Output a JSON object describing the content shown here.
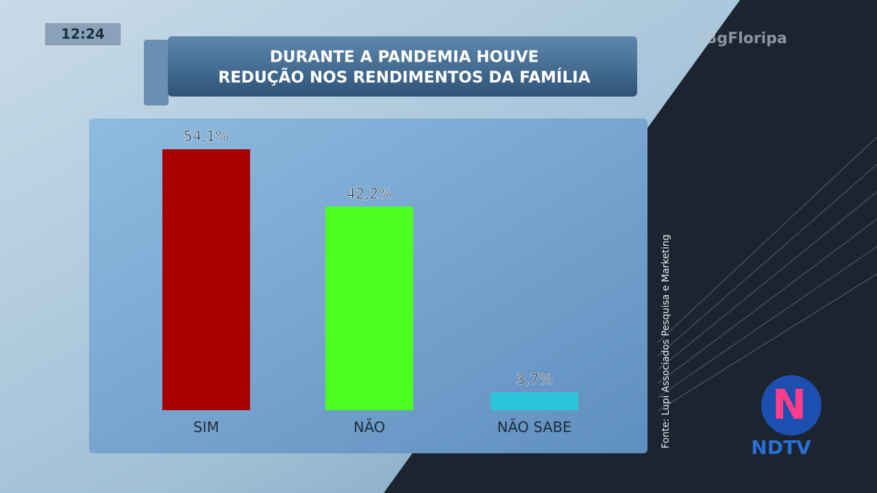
{
  "clock": "12:24",
  "hashtag": "#BgFloripa",
  "logo": "NDTV",
  "chart_data": {
    "type": "bar",
    "title": [
      "DURANTE A PANDEMIA HOUVE",
      "REDUÇÃO NOS RENDIMENTOS DA FAMÍLIA"
    ],
    "categories": [
      "SIM",
      "NÃO",
      "NÃO SABE"
    ],
    "values": [
      54.1,
      42.2,
      3.7
    ],
    "value_labels": [
      "54,1%",
      "42,2%",
      "3,7%"
    ],
    "colors": [
      "#a60000",
      "#4cff1f",
      "#2bc6da"
    ],
    "source": "Fonte: Lupi Associados Pesquisa e Marketing"
  }
}
